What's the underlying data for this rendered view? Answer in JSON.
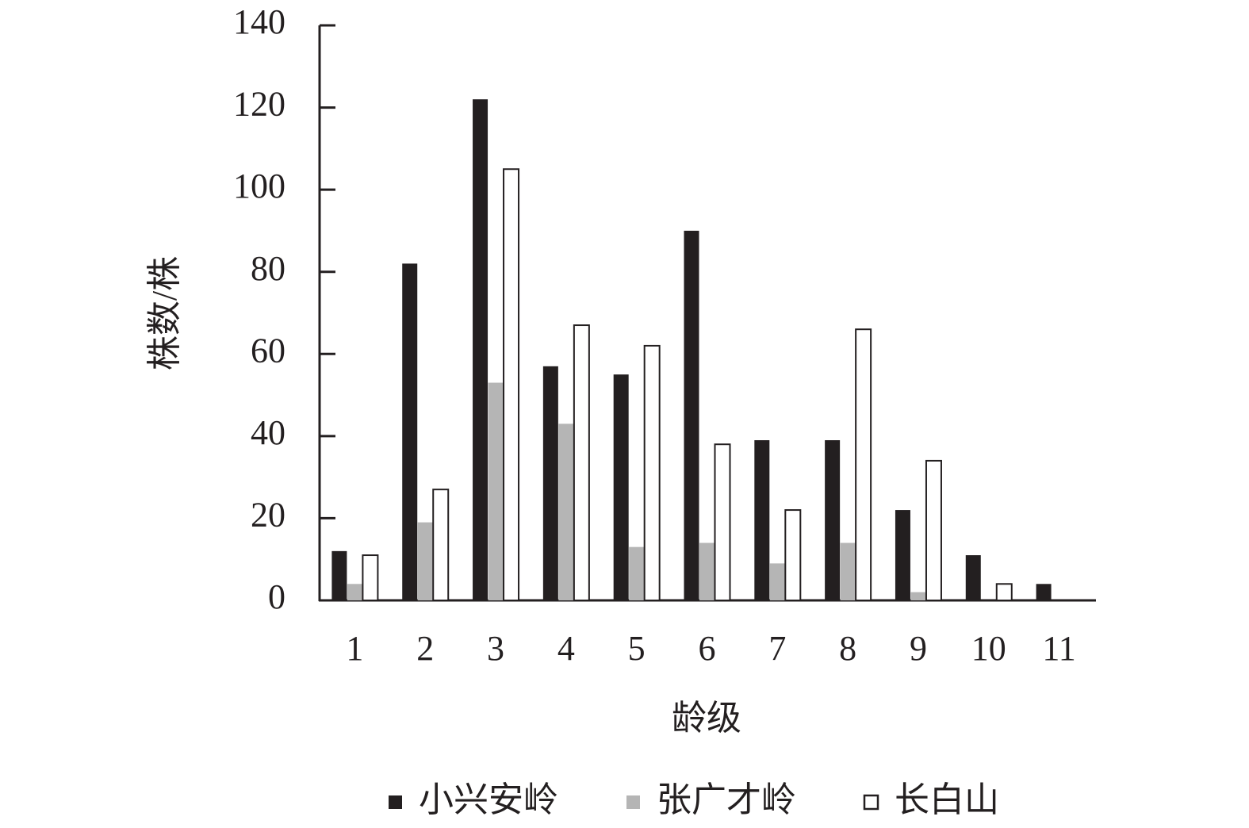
{
  "chart_data": {
    "type": "bar",
    "x_label": "龄级",
    "y_label": "株数/株",
    "categories": [
      "1",
      "2",
      "3",
      "4",
      "5",
      "6",
      "7",
      "8",
      "9",
      "10",
      "11"
    ],
    "series": [
      {
        "name": "小兴安岭",
        "color": "#231f20",
        "values": [
          12,
          82,
          122,
          57,
          55,
          90,
          39,
          39,
          22,
          11,
          4
        ]
      },
      {
        "name": "张广才岭",
        "color": "#b5b5b5",
        "values": [
          4,
          19,
          53,
          43,
          13,
          14,
          9,
          14,
          2,
          0,
          0
        ]
      },
      {
        "name": "长白山",
        "color": "#ffffff",
        "values": [
          11,
          27,
          105,
          67,
          62,
          38,
          22,
          66,
          34,
          4,
          0
        ]
      }
    ],
    "ylim": [
      0,
      140
    ],
    "yticks": [
      0,
      20,
      40,
      60,
      80,
      100,
      120,
      140
    ],
    "legend": "bottom"
  }
}
